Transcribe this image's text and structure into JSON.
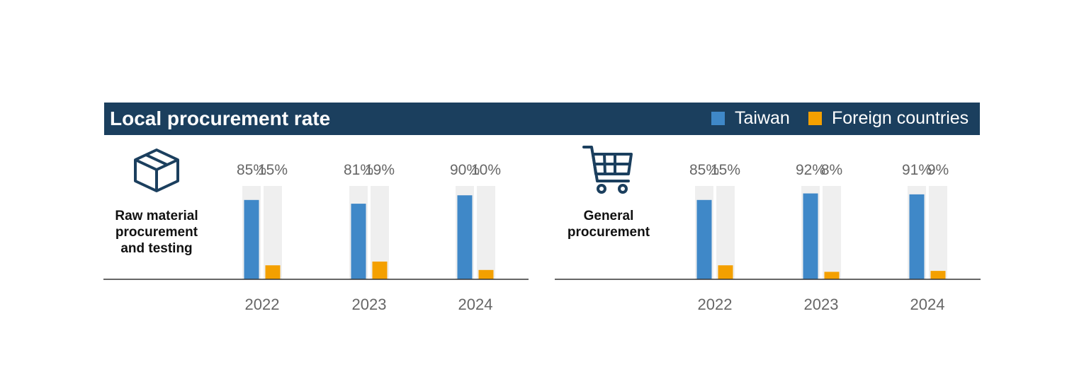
{
  "header": {
    "title": "Local procurement rate",
    "legend": [
      {
        "label": "Taiwan",
        "color": "#3f88c8"
      },
      {
        "label": "Foreign countries",
        "color": "#f4a000"
      }
    ]
  },
  "colors": {
    "taiwan": "#3f88c8",
    "foreign": "#f4a000",
    "track": "#efefef",
    "header": "#1b3f5e"
  },
  "icons": {
    "left": "box-icon",
    "right": "shopping-cart-icon"
  },
  "chart_data": [
    {
      "type": "bar",
      "section_label": [
        "Raw material",
        "procurement",
        "and testing"
      ],
      "categories": [
        "2022",
        "2023",
        "2024"
      ],
      "series": [
        {
          "name": "Taiwan",
          "values": [
            85,
            81,
            90
          ]
        },
        {
          "name": "Foreign countries",
          "values": [
            15,
            19,
            10
          ]
        }
      ],
      "value_labels": [
        [
          "85%",
          "15%"
        ],
        [
          "81%",
          "19%"
        ],
        [
          "90%",
          "10%"
        ]
      ],
      "ylim": [
        0,
        100
      ]
    },
    {
      "type": "bar",
      "section_label": [
        "General",
        "procurement"
      ],
      "categories": [
        "2022",
        "2023",
        "2024"
      ],
      "series": [
        {
          "name": "Taiwan",
          "values": [
            85,
            92,
            91
          ]
        },
        {
          "name": "Foreign countries",
          "values": [
            15,
            8,
            9
          ]
        }
      ],
      "value_labels": [
        [
          "85%",
          "15%"
        ],
        [
          "92%",
          "8%"
        ],
        [
          "91%",
          "9%"
        ]
      ],
      "ylim": [
        0,
        100
      ]
    }
  ]
}
